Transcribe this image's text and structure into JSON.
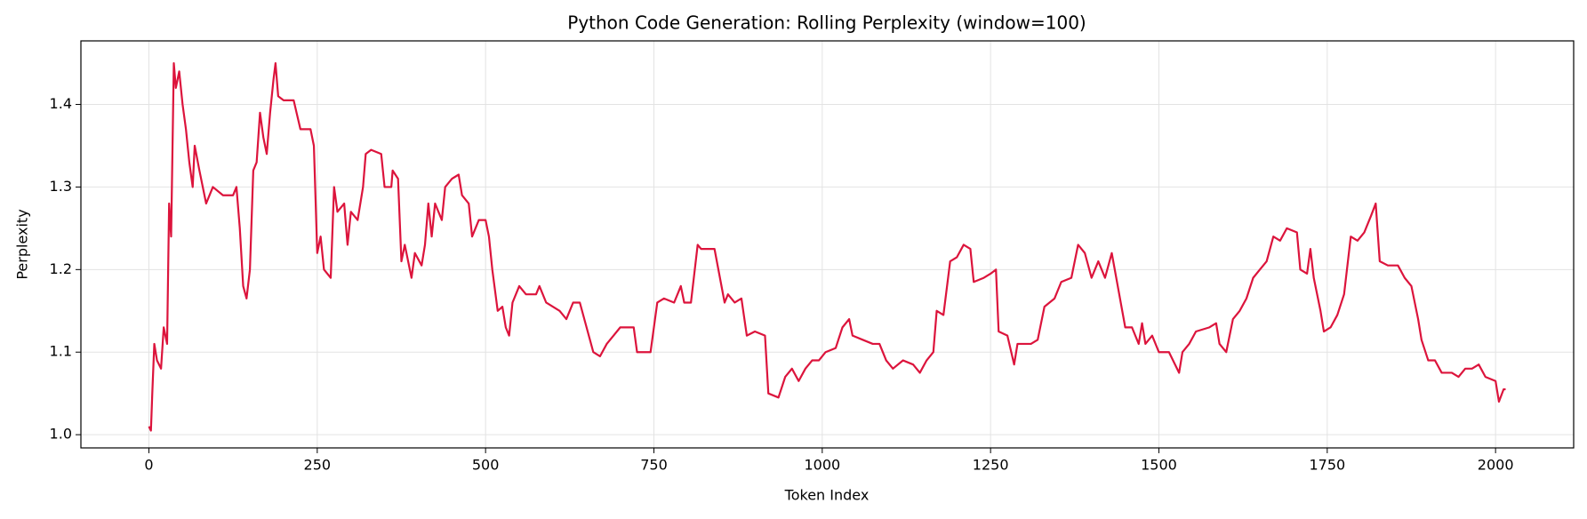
{
  "chart_data": {
    "type": "line",
    "title": "Python Code Generation: Rolling Perplexity (window=100)",
    "x_label": "Token Index",
    "y_label": "Perplexity",
    "grid": true,
    "xlim": [
      -101,
      2116
    ],
    "ylim": [
      0.984,
      1.477
    ],
    "xticks": [
      0,
      250,
      500,
      750,
      1000,
      1250,
      1500,
      1750,
      2000
    ],
    "yticks": [
      {
        "value": 1,
        "label": "1.0"
      },
      1.1,
      1.2,
      1.3,
      1.4
    ],
    "x": [
      0,
      3,
      5,
      8,
      12,
      18,
      22,
      27,
      30,
      33,
      37,
      40,
      45,
      50,
      55,
      60,
      65,
      68,
      75,
      85,
      95,
      110,
      125,
      130,
      135,
      140,
      145,
      150,
      155,
      160,
      165,
      170,
      175,
      180,
      185,
      188,
      192,
      200,
      215,
      225,
      240,
      245,
      250,
      255,
      260,
      270,
      275,
      280,
      290,
      295,
      300,
      310,
      318,
      322,
      330,
      345,
      350,
      360,
      362,
      370,
      375,
      380,
      390,
      395,
      405,
      410,
      415,
      420,
      425,
      435,
      440,
      450,
      460,
      465,
      475,
      480,
      490,
      500,
      505,
      510,
      518,
      525,
      530,
      535,
      540,
      550,
      560,
      575,
      580,
      590,
      610,
      620,
      630,
      640,
      650,
      660,
      670,
      680,
      690,
      700,
      720,
      725,
      745,
      755,
      765,
      780,
      790,
      795,
      805,
      815,
      820,
      840,
      855,
      860,
      870,
      880,
      888,
      900,
      915,
      920,
      935,
      945,
      955,
      965,
      975,
      985,
      995,
      1005,
      1020,
      1030,
      1040,
      1045,
      1060,
      1075,
      1085,
      1095,
      1105,
      1120,
      1135,
      1145,
      1155,
      1165,
      1170,
      1180,
      1190,
      1200,
      1210,
      1220,
      1225,
      1240,
      1250,
      1258,
      1262,
      1275,
      1285,
      1290,
      1310,
      1320,
      1330,
      1345,
      1355,
      1370,
      1380,
      1390,
      1400,
      1410,
      1420,
      1430,
      1440,
      1450,
      1460,
      1470,
      1475,
      1480,
      1490,
      1500,
      1515,
      1530,
      1535,
      1545,
      1555,
      1575,
      1585,
      1590,
      1600,
      1610,
      1620,
      1630,
      1640,
      1650,
      1660,
      1670,
      1680,
      1690,
      1705,
      1710,
      1720,
      1725,
      1730,
      1740,
      1745,
      1755,
      1765,
      1775,
      1785,
      1795,
      1805,
      1815,
      1822,
      1828,
      1840,
      1855,
      1865,
      1875,
      1885,
      1890,
      1900,
      1910,
      1920,
      1935,
      1945,
      1955,
      1965,
      1975,
      1985,
      2000,
      2005,
      2012,
      2015
    ],
    "series": [
      {
        "name": "Rolling Perplexity",
        "color": "#dc143c",
        "values": [
          1.01,
          1.005,
          1.05,
          1.11,
          1.09,
          1.08,
          1.13,
          1.11,
          1.28,
          1.24,
          1.45,
          1.42,
          1.44,
          1.4,
          1.37,
          1.33,
          1.3,
          1.35,
          1.32,
          1.28,
          1.3,
          1.29,
          1.29,
          1.3,
          1.25,
          1.18,
          1.165,
          1.2,
          1.32,
          1.33,
          1.39,
          1.36,
          1.34,
          1.39,
          1.43,
          1.45,
          1.41,
          1.405,
          1.405,
          1.37,
          1.37,
          1.35,
          1.22,
          1.24,
          1.2,
          1.19,
          1.3,
          1.27,
          1.28,
          1.23,
          1.27,
          1.26,
          1.3,
          1.34,
          1.345,
          1.34,
          1.3,
          1.3,
          1.32,
          1.31,
          1.21,
          1.23,
          1.19,
          1.22,
          1.205,
          1.23,
          1.28,
          1.24,
          1.28,
          1.26,
          1.3,
          1.31,
          1.315,
          1.29,
          1.28,
          1.24,
          1.26,
          1.26,
          1.24,
          1.2,
          1.15,
          1.155,
          1.13,
          1.12,
          1.16,
          1.18,
          1.17,
          1.17,
          1.18,
          1.16,
          1.15,
          1.14,
          1.16,
          1.16,
          1.13,
          1.1,
          1.095,
          1.11,
          1.12,
          1.13,
          1.13,
          1.1,
          1.1,
          1.16,
          1.165,
          1.16,
          1.18,
          1.16,
          1.16,
          1.23,
          1.225,
          1.225,
          1.16,
          1.17,
          1.16,
          1.165,
          1.12,
          1.125,
          1.12,
          1.05,
          1.045,
          1.07,
          1.08,
          1.065,
          1.08,
          1.09,
          1.09,
          1.1,
          1.105,
          1.13,
          1.14,
          1.12,
          1.115,
          1.11,
          1.11,
          1.09,
          1.08,
          1.09,
          1.085,
          1.075,
          1.09,
          1.1,
          1.15,
          1.145,
          1.21,
          1.215,
          1.23,
          1.225,
          1.185,
          1.19,
          1.195,
          1.2,
          1.125,
          1.12,
          1.085,
          1.11,
          1.11,
          1.115,
          1.155,
          1.165,
          1.185,
          1.19,
          1.23,
          1.22,
          1.19,
          1.21,
          1.19,
          1.22,
          1.175,
          1.13,
          1.13,
          1.11,
          1.135,
          1.11,
          1.12,
          1.1,
          1.1,
          1.075,
          1.1,
          1.11,
          1.125,
          1.13,
          1.135,
          1.11,
          1.1,
          1.14,
          1.15,
          1.165,
          1.19,
          1.2,
          1.21,
          1.24,
          1.235,
          1.25,
          1.245,
          1.2,
          1.195,
          1.225,
          1.19,
          1.15,
          1.125,
          1.13,
          1.145,
          1.17,
          1.24,
          1.235,
          1.245,
          1.265,
          1.28,
          1.21,
          1.205,
          1.205,
          1.19,
          1.18,
          1.14,
          1.115,
          1.09,
          1.09,
          1.075,
          1.075,
          1.07,
          1.08,
          1.08,
          1.085,
          1.07,
          1.065,
          1.04,
          1.055,
          1.055
        ]
      }
    ]
  }
}
